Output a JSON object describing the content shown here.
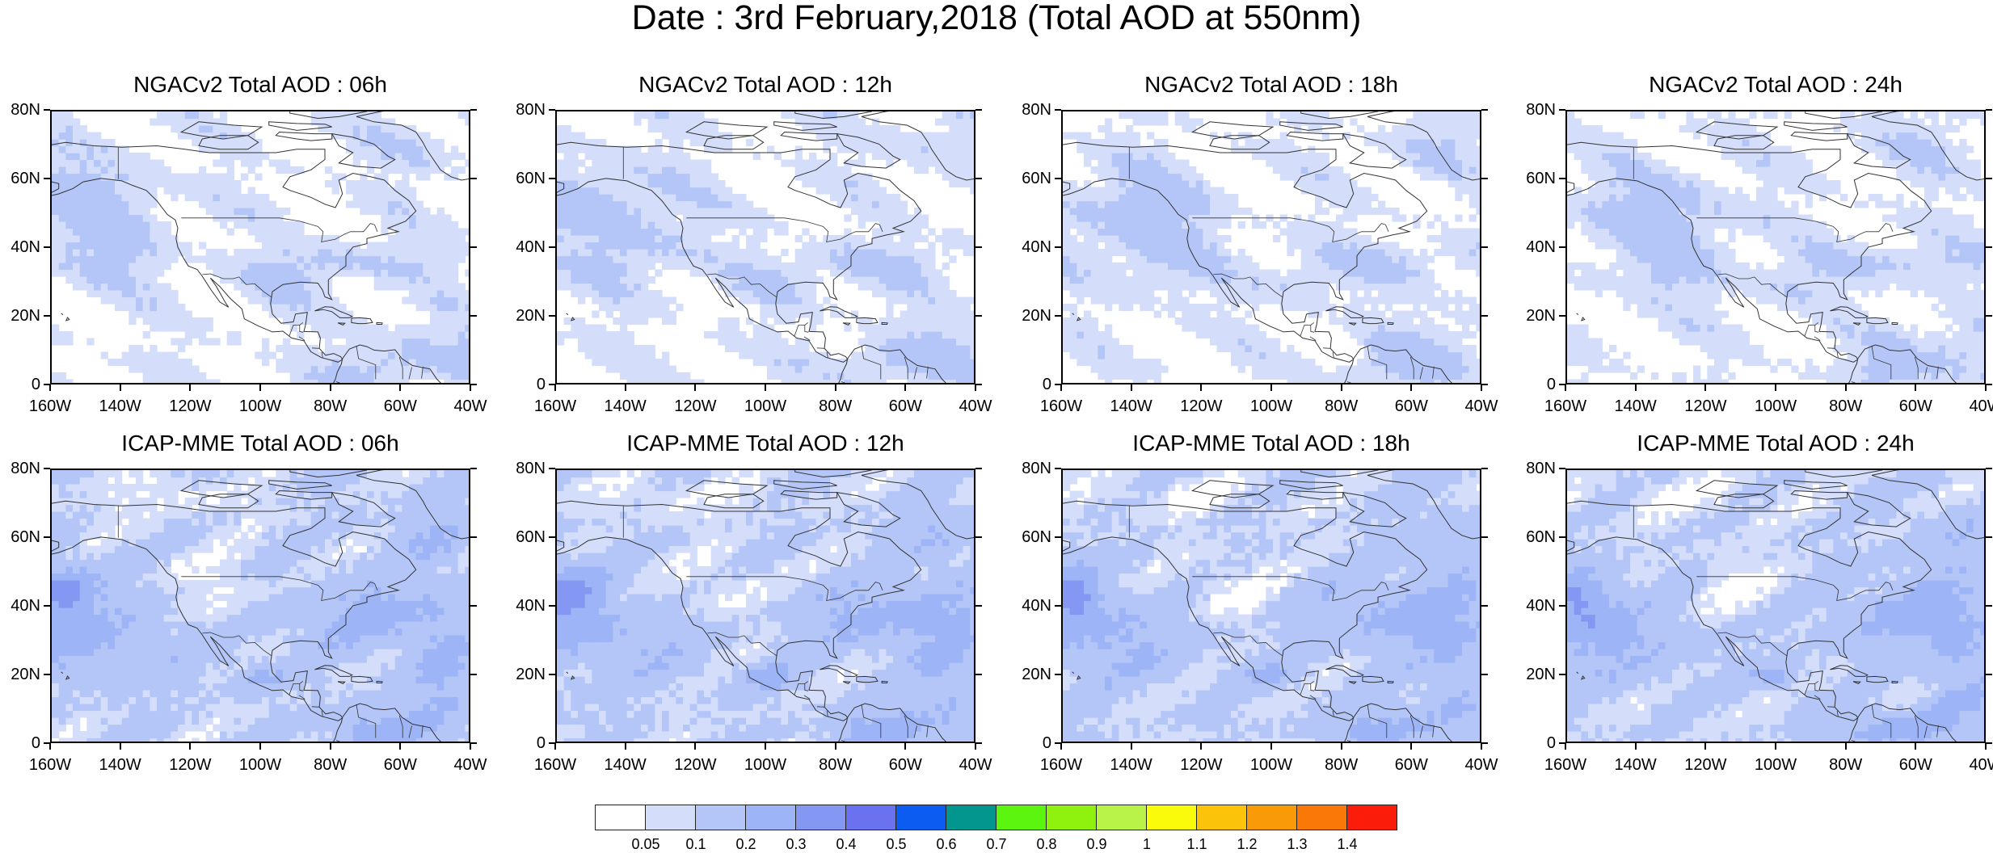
{
  "title": "Date : 3rd February,2018 (Total AOD at 550nm)",
  "lat_labels": [
    "80N",
    "60N",
    "40N",
    "20N",
    "0"
  ],
  "lon_labels": [
    "160W",
    "140W",
    "120W",
    "100W",
    "80W",
    "60W",
    "40W"
  ],
  "panels": [
    {
      "title": "NGACv2 Total AOD : 06h",
      "model": "NGACv2",
      "lead": "06h"
    },
    {
      "title": "NGACv2 Total AOD : 12h",
      "model": "NGACv2",
      "lead": "12h"
    },
    {
      "title": "NGACv2 Total AOD : 18h",
      "model": "NGACv2",
      "lead": "18h"
    },
    {
      "title": "NGACv2 Total AOD : 24h",
      "model": "NGACv2",
      "lead": "24h"
    },
    {
      "title": "ICAP-MME Total AOD : 06h",
      "model": "ICAP-MME",
      "lead": "06h"
    },
    {
      "title": "ICAP-MME Total AOD : 12h",
      "model": "ICAP-MME",
      "lead": "12h"
    },
    {
      "title": "ICAP-MME Total AOD : 18h",
      "model": "ICAP-MME",
      "lead": "18h"
    },
    {
      "title": "ICAP-MME Total AOD : 24h",
      "model": "ICAP-MME",
      "lead": "24h"
    }
  ],
  "colorbar": {
    "labels": [
      "0.05",
      "0.1",
      "0.2",
      "0.3",
      "0.4",
      "0.5",
      "0.6",
      "0.7",
      "0.8",
      "0.9",
      "1",
      "1.1",
      "1.2",
      "1.3",
      "1.4"
    ],
    "colors": [
      "#ffffff",
      "#d4defb",
      "#b4c6f7",
      "#9db4f6",
      "#8497f2",
      "#6b72f0",
      "#0d5cf2",
      "#03968e",
      "#5cf50f",
      "#8ff20e",
      "#b9f347",
      "#fafb0a",
      "#fbc30a",
      "#f99b08",
      "#f97808",
      "#fb1c0a"
    ]
  },
  "map_extent": {
    "lon_min": -160,
    "lon_max": -40,
    "lat_min": 0,
    "lat_max": 80
  }
}
